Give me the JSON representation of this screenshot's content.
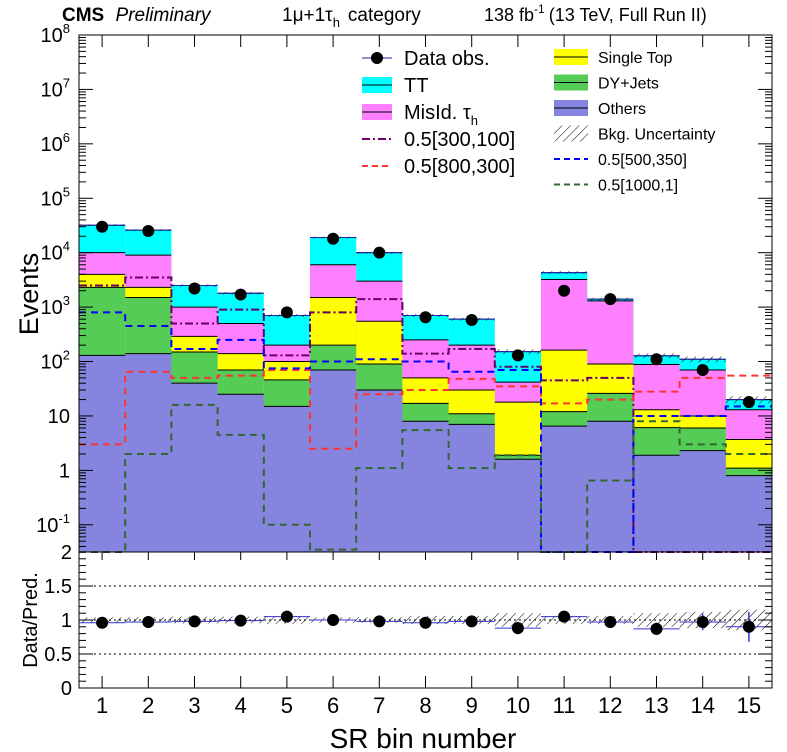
{
  "header": {
    "experiment": "CMS",
    "status": "Preliminary",
    "category_prefix": "1μ+1τ",
    "category_sub": "h",
    "category_suffix": "category",
    "lumi_value": "138 fb",
    "lumi_sup": "-1",
    "lumi_rest": "(13 TeV, Full Run II)"
  },
  "colors": {
    "tt": "#00ffff",
    "misid": "#ff80ff",
    "singletop": "#ffff00",
    "dy": "#55cc55",
    "others": "#8585e0",
    "data": "#000000",
    "sig_300_100": "#660066",
    "sig_800_300": "#ff3333",
    "sig_500_350": "#0000ff",
    "sig_1000_1": "#336633",
    "uncertainty": "#000000"
  },
  "legend": {
    "left": [
      {
        "key": "data",
        "label": "Data obs.",
        "style": "marker"
      },
      {
        "key": "tt",
        "label": "TT",
        "style": "fill"
      },
      {
        "key": "misid",
        "label": "MisId. τ",
        "sub": "h",
        "style": "fill"
      },
      {
        "key": "sig_300_100",
        "label": "0.5[300,100]",
        "style": "dashdot"
      },
      {
        "key": "sig_800_300",
        "label": "0.5[800,300]",
        "style": "dash"
      }
    ],
    "right": [
      {
        "key": "singletop",
        "label": "Single Top",
        "style": "fill"
      },
      {
        "key": "dy",
        "label": "DY+Jets",
        "style": "fill"
      },
      {
        "key": "others",
        "label": "Others",
        "style": "fill"
      },
      {
        "key": "uncertainty",
        "label": "Bkg. Uncertainty",
        "style": "hatch"
      },
      {
        "key": "sig_500_350",
        "label": "0.5[500,350]",
        "style": "dash"
      },
      {
        "key": "sig_1000_1",
        "label": "0.5[1000,1]",
        "style": "dash"
      }
    ]
  },
  "chart_data": [
    {
      "type": "bar",
      "stacked": true,
      "log_scale": true,
      "ylabel": "Events",
      "ylim": [
        0.03,
        100000000
      ],
      "y_ticks": [
        {
          "value": 0.1,
          "base": "10",
          "exp": "-1"
        },
        {
          "value": 1,
          "text": "1"
        },
        {
          "value": 10,
          "text": "10"
        },
        {
          "value": 100,
          "base": "10",
          "exp": "2"
        },
        {
          "value": 1000,
          "base": "10",
          "exp": "3"
        },
        {
          "value": 10000,
          "base": "10",
          "exp": "4"
        },
        {
          "value": 100000,
          "base": "10",
          "exp": "5"
        },
        {
          "value": 1000000,
          "base": "10",
          "exp": "6"
        },
        {
          "value": 10000000,
          "base": "10",
          "exp": "7"
        },
        {
          "value": 100000000,
          "base": "10",
          "exp": "8"
        }
      ],
      "categories": [
        "1",
        "2",
        "3",
        "4",
        "5",
        "6",
        "7",
        "8",
        "9",
        "10",
        "11",
        "12",
        "13",
        "14",
        "15"
      ],
      "stack_order": [
        "others",
        "dy",
        "singletop",
        "misid",
        "tt"
      ],
      "series": [
        {
          "name": "Others",
          "key": "others",
          "values": [
            130,
            140,
            40,
            25,
            15,
            70,
            30,
            8,
            7,
            1.6,
            6.5,
            8,
            1.9,
            2.3,
            0.8
          ]
        },
        {
          "name": "DY+Jets",
          "key": "dy",
          "values": [
            2170,
            1360,
            110,
            45,
            31,
            130,
            60,
            9,
            4,
            0.3,
            5.5,
            18,
            4.2,
            3.7,
            0.3
          ]
        },
        {
          "name": "Single Top",
          "key": "singletop",
          "values": [
            1700,
            800,
            140,
            70,
            54,
            1300,
            460,
            33,
            19,
            16,
            150,
            64,
            6.9,
            4,
            2.6
          ]
        },
        {
          "name": "MisId. τh",
          "key": "misid",
          "values": [
            6000,
            6700,
            710,
            360,
            100,
            4500,
            2450,
            200,
            170,
            24,
            3050,
            1210,
            75,
            60,
            9.3
          ]
        },
        {
          "name": "TT",
          "key": "tt",
          "values": [
            22000,
            17000,
            1500,
            1300,
            500,
            13000,
            7000,
            450,
            400,
            110,
            1100,
            100,
            40,
            40,
            7
          ]
        }
      ],
      "data_obs": [
        30000,
        25000,
        2200,
        1700,
        800,
        18000,
        10000,
        650,
        580,
        130,
        2000,
        1400,
        110,
        70,
        18
      ],
      "signals": [
        {
          "name": "0.5[300,100]",
          "key": "sig_300_100",
          "values": [
            2500,
            3500,
            500,
            900,
            130,
            800,
            1400,
            140,
            170,
            80,
            45,
            50,
            0.01,
            0.01,
            0.01
          ]
        },
        {
          "name": "0.5[800,300]",
          "key": "sig_800_300",
          "values": [
            3,
            65,
            50,
            55,
            70,
            2.5,
            25,
            30,
            48,
            35,
            17,
            20,
            28,
            50,
            55
          ]
        },
        {
          "name": "0.5[500,350]",
          "key": "sig_500_350",
          "values": [
            800,
            450,
            170,
            250,
            75,
            100,
            110,
            100,
            65,
            70,
            0.01,
            0.01,
            10,
            10,
            15
          ]
        },
        {
          "name": "0.5[1000,1]",
          "key": "sig_1000_1",
          "values": [
            0.01,
            2,
            16,
            4.5,
            0.1,
            0.035,
            1.1,
            5.5,
            1.1,
            1.9,
            0.01,
            0.65,
            8,
            3,
            2
          ]
        }
      ]
    },
    {
      "type": "scatter",
      "xlabel": "SR bin number",
      "ylabel": "Data/Pred.",
      "ylim": [
        0,
        2
      ],
      "y_ticks": [
        "0",
        "0.5",
        "1",
        "1.5",
        "2"
      ],
      "reference_lines": [
        0.5,
        1,
        1.5
      ],
      "x": [
        1,
        2,
        3,
        4,
        5,
        6,
        7,
        8,
        9,
        10,
        11,
        12,
        13,
        14,
        15
      ],
      "ratio": [
        0.96,
        0.97,
        0.98,
        0.99,
        1.05,
        1.0,
        0.98,
        0.96,
        0.98,
        0.88,
        1.05,
        0.97,
        0.87,
        0.97,
        0.9
      ],
      "uncertainty": [
        0.04,
        0.04,
        0.05,
        0.05,
        0.06,
        0.04,
        0.04,
        0.06,
        0.06,
        0.1,
        0.06,
        0.06,
        0.1,
        0.12,
        0.15
      ],
      "data_error": [
        0.01,
        0.01,
        0.02,
        0.03,
        0.04,
        0.01,
        0.01,
        0.04,
        0.04,
        0.09,
        0.03,
        0.03,
        0.09,
        0.12,
        0.22
      ]
    }
  ]
}
